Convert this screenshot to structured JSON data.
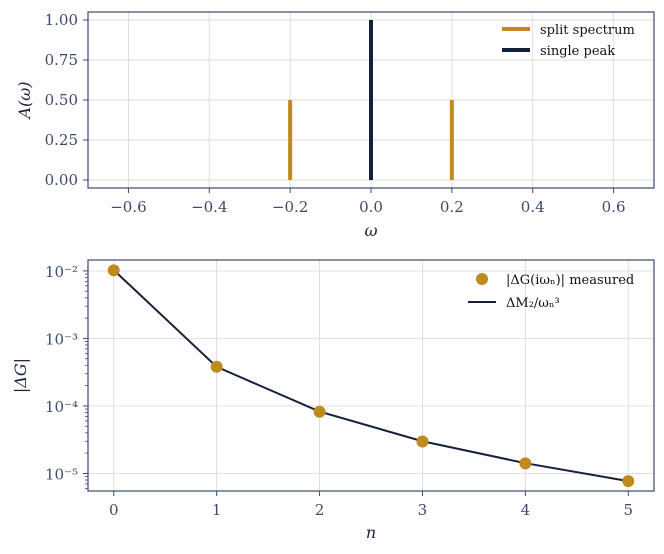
{
  "colors": {
    "split": "#bf8a1e",
    "single": "#14213d",
    "axis": "#3b4a6b",
    "grid": "#dedcd6"
  },
  "chart_data": [
    {
      "type": "bar",
      "subtype": "stem",
      "xlabel": "ω",
      "ylabel": "A(ω)",
      "xlim": [
        -0.7,
        0.7
      ],
      "ylim": [
        -0.05,
        1.05
      ],
      "xticks": [
        -0.6,
        -0.4,
        -0.2,
        0.0,
        0.2,
        0.4,
        0.6
      ],
      "xtick_labels": [
        "−0.6",
        "−0.4",
        "−0.2",
        "0.0",
        "0.2",
        "0.4",
        "0.6"
      ],
      "yticks": [
        0.0,
        0.25,
        0.5,
        0.75,
        1.0
      ],
      "ytick_labels": [
        "0.00",
        "0.25",
        "0.50",
        "0.75",
        "1.00"
      ],
      "grid": true,
      "legend_position": "top-right",
      "series": [
        {
          "name": "split spectrum",
          "color": "#bf8a1e",
          "x": [
            -0.2,
            0.2
          ],
          "values": [
            0.5,
            0.5
          ]
        },
        {
          "name": "single peak",
          "color": "#14213d",
          "x": [
            0.0
          ],
          "values": [
            1.0
          ]
        }
      ]
    },
    {
      "type": "scatter",
      "yscale": "log",
      "xlabel": "n",
      "ylabel": "|ΔG|",
      "xlim": [
        -0.25,
        5.25
      ],
      "ylim": [
        5.5e-06,
        0.0145
      ],
      "xticks": [
        0,
        1,
        2,
        3,
        4,
        5
      ],
      "xtick_labels": [
        "0",
        "1",
        "2",
        "3",
        "4",
        "5"
      ],
      "yticks": [
        1e-05,
        0.0001,
        0.001,
        0.01
      ],
      "ytick_labels": [
        "10⁻⁵",
        "10⁻⁴",
        "10⁻³",
        "10⁻²"
      ],
      "grid": true,
      "legend_position": "top-right",
      "x": [
        0,
        1,
        2,
        3,
        4,
        5
      ],
      "series": [
        {
          "name": "|ΔG(iωₙ)| measured",
          "kind": "scatter",
          "color": "#bf8a1e",
          "values": [
            0.0102,
            0.00038,
            8.2e-05,
            2.98e-05,
            1.41e-05,
            7.7e-06
          ]
        },
        {
          "name": "ΔM₂/ωₙ³",
          "kind": "line",
          "color": "#14213d",
          "values": [
            0.0103,
            0.00038,
            8.25e-05,
            3e-05,
            1.42e-05,
            7.7e-06
          ]
        }
      ]
    }
  ]
}
